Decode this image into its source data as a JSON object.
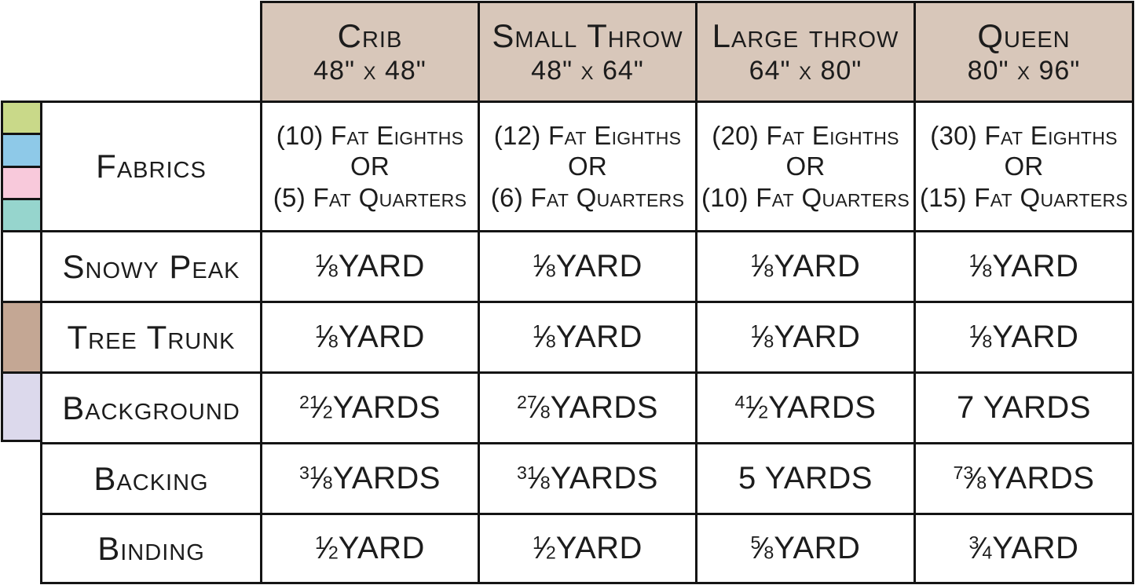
{
  "table": {
    "columns": [
      {
        "title": "Crib",
        "size": "48\" x 48\""
      },
      {
        "title": "Small Throw",
        "size": "48\" x 64\""
      },
      {
        "title": "Large throw",
        "size": "64\" x 80\""
      },
      {
        "title": "Queen",
        "size": "80\" x 96\""
      }
    ],
    "rows": [
      {
        "label": "Fabrics",
        "values": [
          "(10) Fat Eighths\nOR\n(5) Fat Quarters",
          "(12) Fat Eighths\nOR\n(6) Fat Quarters",
          "(20) Fat Eighths\nOR\n(10) Fat Quarters",
          "(30) Fat Eighths\nOR\n(15) Fat Quarters"
        ]
      },
      {
        "label": "Snowy Peak",
        "values": [
          "1/8 YARD",
          "1/8 YARD",
          "1/8 YARD",
          "1/8 YARD"
        ]
      },
      {
        "label": "Tree Trunk",
        "values": [
          "1/8 YARD",
          "1/8 YARD",
          "1/8 YARD",
          "1/8 YARD"
        ]
      },
      {
        "label": "Background",
        "values": [
          "2 1/2 YARDS",
          "2 7/8 YARDS",
          "4 1/2 YARDS",
          "7 YARDS"
        ]
      },
      {
        "label": "Backing",
        "values": [
          "3 1/8 YARDS",
          "3 1/8 YARDS",
          "5 YARDS",
          "7 3/8 YARDS"
        ]
      },
      {
        "label": "Binding",
        "values": [
          "1/2 YARD",
          "1/2 YARD",
          "5/8 YARD",
          "3/4 YARD"
        ]
      }
    ],
    "swatches": {
      "fabrics": [
        {
          "name": "green",
          "color": "#c9d989"
        },
        {
          "name": "blue",
          "color": "#8ec9e8"
        },
        {
          "name": "pink",
          "color": "#f8c9db"
        },
        {
          "name": "teal",
          "color": "#96d5cd"
        }
      ],
      "snowy_peak": {
        "color": "#ffffff"
      },
      "tree_trunk": {
        "color": "#c4a794"
      },
      "background": {
        "color": "#dcd9ec"
      }
    },
    "colors": {
      "header_bg": "#d8c7ba",
      "border": "#141414",
      "text": "#1c1c1c"
    }
  }
}
